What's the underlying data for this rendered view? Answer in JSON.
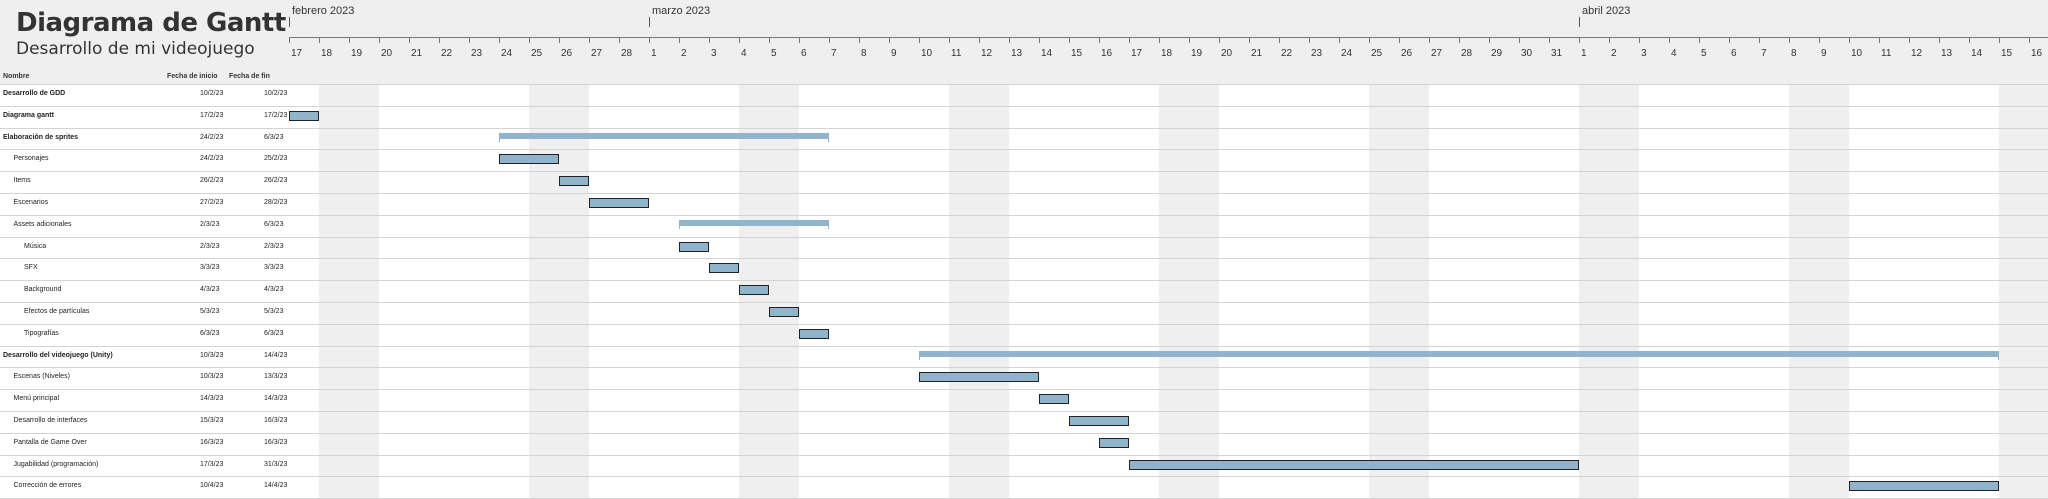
{
  "header": {
    "title": "Diagrama de Gantt",
    "subtitle": "Desarrollo de mi videojuego"
  },
  "columns": {
    "name": "Nombre",
    "start": "Fecha de inicio",
    "end": "Fecha de fin"
  },
  "timeline": {
    "months": [
      {
        "label": "febrero 2023",
        "start_day": 0
      },
      {
        "label": "marzo 2023",
        "start_day": 12
      },
      {
        "label": "abril 2023",
        "start_day": 43
      }
    ],
    "day_labels": [
      "17",
      "18",
      "19",
      "20",
      "21",
      "22",
      "23",
      "24",
      "25",
      "26",
      "27",
      "28",
      "1",
      "2",
      "3",
      "4",
      "5",
      "6",
      "7",
      "8",
      "9",
      "10",
      "11",
      "12",
      "13",
      "14",
      "15",
      "16",
      "17",
      "18",
      "19",
      "20",
      "21",
      "22",
      "23",
      "24",
      "25",
      "26",
      "27",
      "28",
      "29",
      "30",
      "31",
      "1",
      "2",
      "3",
      "4",
      "5",
      "6",
      "7",
      "8",
      "9",
      "10",
      "11",
      "12",
      "13",
      "14",
      "15",
      "16"
    ]
  },
  "colors": {
    "bar": "#90b4cc",
    "weekend": "#efefef",
    "header": "#efefef"
  },
  "chart_data": {
    "type": "gantt",
    "title": "Diagrama de Gantt",
    "subtitle": "Desarrollo de mi videojuego",
    "x_range": [
      "2023-02-17",
      "2023-04-16"
    ],
    "tasks": [
      {
        "name": "Desarrollo de GDD",
        "start": "10/2/23",
        "end": "10/2/23",
        "level": 0,
        "bold": true,
        "start_date": "2023-02-10",
        "end_date": "2023-02-10"
      },
      {
        "name": "Diagrama gantt",
        "start": "17/2/23",
        "end": "17/2/23",
        "level": 0,
        "bold": true,
        "start_date": "2023-02-17",
        "end_date": "2023-02-17"
      },
      {
        "name": "Elaboración de sprites",
        "start": "24/2/23",
        "end": "6/3/23",
        "level": 0,
        "bold": true,
        "summary": true,
        "start_date": "2023-02-24",
        "end_date": "2023-03-06"
      },
      {
        "name": "Personajes",
        "start": "24/2/23",
        "end": "25/2/23",
        "level": 1,
        "start_date": "2023-02-24",
        "end_date": "2023-02-25"
      },
      {
        "name": "Items",
        "start": "26/2/23",
        "end": "26/2/23",
        "level": 1,
        "start_date": "2023-02-26",
        "end_date": "2023-02-26"
      },
      {
        "name": "Escenarios",
        "start": "27/2/23",
        "end": "28/2/23",
        "level": 1,
        "start_date": "2023-02-27",
        "end_date": "2023-02-28"
      },
      {
        "name": "Assets adicionales",
        "start": "2/3/23",
        "end": "6/3/23",
        "level": 1,
        "summary": true,
        "start_date": "2023-03-02",
        "end_date": "2023-03-06"
      },
      {
        "name": "Música",
        "start": "2/3/23",
        "end": "2/3/23",
        "level": 2,
        "start_date": "2023-03-02",
        "end_date": "2023-03-02"
      },
      {
        "name": "SFX",
        "start": "3/3/23",
        "end": "3/3/23",
        "level": 2,
        "start_date": "2023-03-03",
        "end_date": "2023-03-03"
      },
      {
        "name": "Background",
        "start": "4/3/23",
        "end": "4/3/23",
        "level": 2,
        "start_date": "2023-03-04",
        "end_date": "2023-03-04"
      },
      {
        "name": "Efectos de partículas",
        "start": "5/3/23",
        "end": "5/3/23",
        "level": 2,
        "start_date": "2023-03-05",
        "end_date": "2023-03-05"
      },
      {
        "name": "Tipografías",
        "start": "6/3/23",
        "end": "6/3/23",
        "level": 2,
        "start_date": "2023-03-06",
        "end_date": "2023-03-06"
      },
      {
        "name": "Desarrollo del videojuego (Unity)",
        "start": "10/3/23",
        "end": "14/4/23",
        "level": 0,
        "bold": true,
        "summary": true,
        "start_date": "2023-03-10",
        "end_date": "2023-04-14"
      },
      {
        "name": "Escenas (Niveles)",
        "start": "10/3/23",
        "end": "13/3/23",
        "level": 1,
        "start_date": "2023-03-10",
        "end_date": "2023-03-13"
      },
      {
        "name": "Menú principal",
        "start": "14/3/23",
        "end": "14/3/23",
        "level": 1,
        "start_date": "2023-03-14",
        "end_date": "2023-03-14"
      },
      {
        "name": "Desarrollo de interfaces",
        "start": "15/3/23",
        "end": "16/3/23",
        "level": 1,
        "start_date": "2023-03-15",
        "end_date": "2023-03-16"
      },
      {
        "name": "Pantalla de Game Over",
        "start": "16/3/23",
        "end": "16/3/23",
        "level": 1,
        "start_date": "2023-03-16",
        "end_date": "2023-03-16"
      },
      {
        "name": "Jugabilidad (programación)",
        "start": "17/3/23",
        "end": "31/3/23",
        "level": 1,
        "start_date": "2023-03-17",
        "end_date": "2023-03-31"
      },
      {
        "name": "Corrección de errores",
        "start": "10/4/23",
        "end": "14/4/23",
        "level": 1,
        "start_date": "2023-04-10",
        "end_date": "2023-04-14"
      }
    ]
  }
}
